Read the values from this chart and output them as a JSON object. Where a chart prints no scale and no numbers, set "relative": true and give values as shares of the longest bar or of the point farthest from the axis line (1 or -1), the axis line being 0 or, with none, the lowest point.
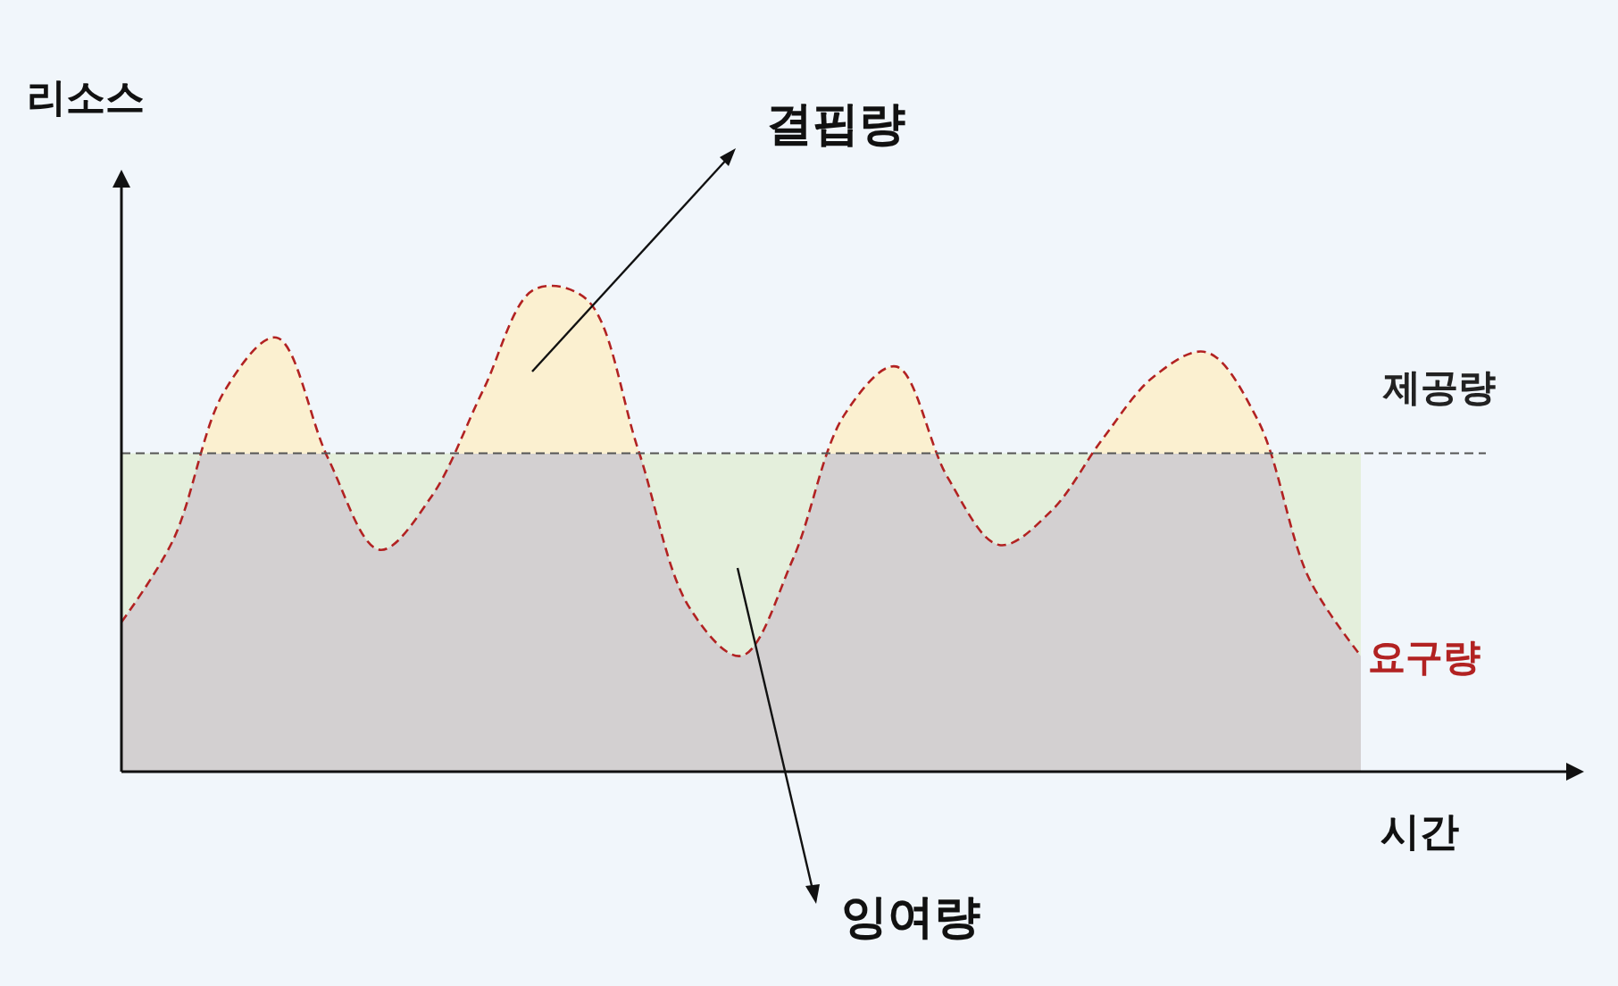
{
  "chart_data": {
    "type": "area",
    "relative": true,
    "xlabel": "시간",
    "ylabel": "리소스",
    "categories": [
      null,
      null,
      null,
      null,
      null,
      null,
      null,
      null,
      null,
      null,
      null,
      null,
      null,
      null,
      null,
      null,
      null,
      null,
      null,
      null,
      null,
      null,
      null,
      null,
      null
    ],
    "series": [
      {
        "name": "요구량",
        "color": "#b22222",
        "line_style": "dashed",
        "values": [
          0.31,
          0.48,
          0.79,
          0.9,
          0.65,
          0.46,
          0.57,
          0.79,
          1,
          0.98,
          0.67,
          0.34,
          0.24,
          0.44,
          0.74,
          0.84,
          0.61,
          0.47,
          0.54,
          0.69,
          0.82,
          0.87,
          0.73,
          0.4,
          0.24
        ]
      }
    ],
    "ref_lines": [
      {
        "axis": "y",
        "value": 0.66,
        "label": "제공량",
        "color": "#555555",
        "line_style": "dashed"
      }
    ],
    "bands": [
      {
        "axis": "y",
        "from": 0,
        "to": 0.66,
        "color": "#e4efdc"
      }
    ],
    "annotations": [
      "결핍량",
      "잉여량"
    ],
    "legend": false
  }
}
